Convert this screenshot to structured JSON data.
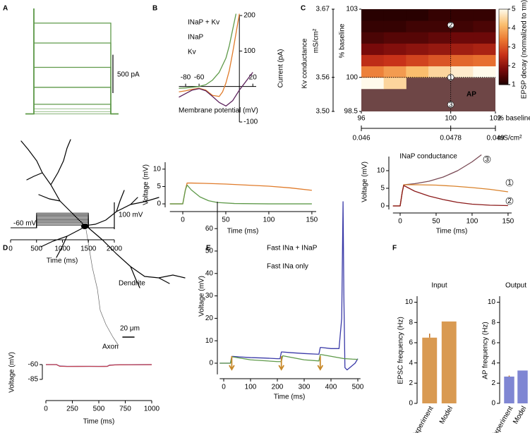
{
  "panel_labels": [
    "A",
    "B",
    "C",
    "D",
    "E",
    "F"
  ],
  "morphology": {
    "dendrite": "Dendrite",
    "axon": "Axon",
    "scalebar": "20 μm"
  },
  "chart_data": [
    {
      "type": "traces",
      "values": [
        1183,
        923,
        606,
        346,
        125,
        67,
        29
      ],
      "color": "#5f9a4a",
      "ylim": [
        -60,
        1300
      ],
      "scalebar": {
        "value": 500,
        "label": "500 pA"
      }
    },
    {
      "type": "protocol",
      "xlabel": "Time (ms)",
      "xlim": [
        0,
        2000
      ],
      "xticks": [
        0,
        500,
        1000,
        1500,
        2000
      ],
      "ylim": [
        -65,
        40
      ],
      "holding": {
        "value": -60,
        "label": "-60 mV"
      },
      "step_times": [
        500,
        1500
      ],
      "levels": [
        -50,
        -45,
        -40,
        -35,
        -30,
        -25,
        -20,
        -15,
        -10,
        -5
      ],
      "color": "#000000",
      "scalebar": {
        "value": 100,
        "label": "100 mV"
      }
    },
    {
      "type": "line",
      "xlabel": "Membrane potential (mV)",
      "ylabel": "Current (pA)",
      "xlim": [
        -90,
        25
      ],
      "xticks": [
        -80,
        -60,
        20
      ],
      "ylim": [
        -100,
        200
      ],
      "yticks": [
        -100,
        100,
        200
      ],
      "series": [
        {
          "name": "INaP + Kv",
          "color": "#e07b2a",
          "x": [
            -90,
            -80,
            -70,
            -60,
            -50,
            -40,
            -30,
            -25,
            -20,
            -15,
            -10,
            -5,
            0
          ],
          "values": [
            -15,
            -12,
            -8,
            -5,
            -10,
            -25,
            -28,
            -15,
            10,
            45,
            95,
            150,
            205
          ]
        },
        {
          "name": "INaP",
          "color": "#5a1f5a",
          "x": [
            -90,
            -80,
            -70,
            -60,
            -50,
            -40,
            -30,
            -20,
            -10,
            0,
            10,
            20
          ],
          "values": [
            -30,
            -20,
            -10,
            -6,
            -12,
            -28,
            -45,
            -55,
            -40,
            -10,
            15,
            40
          ]
        },
        {
          "name": "Kv",
          "color": "#5f9a4a",
          "x": [
            -90,
            -80,
            -70,
            -60,
            -50,
            -40,
            -30,
            -20,
            -15,
            -10,
            -5
          ],
          "values": [
            -5,
            -4,
            -2,
            0,
            5,
            18,
            40,
            80,
            115,
            160,
            205
          ]
        }
      ]
    },
    {
      "type": "line",
      "xlabel": "Time (ms)",
      "ylabel": "Voltage (mV)",
      "xlim": [
        -15,
        155
      ],
      "xticks": [
        0,
        50,
        100,
        150
      ],
      "ylim": [
        -1,
        12
      ],
      "yticks": [
        0,
        5,
        10
      ],
      "series": [
        {
          "color": "#e07b2a",
          "x": [
            -15,
            0,
            3,
            5,
            10,
            25,
            50,
            75,
            100,
            125,
            150
          ],
          "values": [
            0,
            0,
            4,
            6,
            6,
            5.9,
            5.7,
            5.4,
            5.1,
            4.6,
            3.9
          ]
        },
        {
          "color": "#5f9a4a",
          "x": [
            -15,
            0,
            3,
            5,
            10,
            20,
            30,
            40,
            60,
            100,
            150
          ],
          "values": [
            0,
            0,
            4,
            5.4,
            4,
            2,
            0.9,
            0.4,
            0.1,
            0,
            0
          ]
        }
      ]
    },
    {
      "type": "heatmap",
      "xlabel": "INaP conductance",
      "ylabel": "Kv conductance",
      "xlim": [
        96,
        102
      ],
      "xticks": [
        96,
        100,
        102
      ],
      "xticks_unit": "% baseline",
      "xticks2": [
        {
          "value": 96,
          "label": "0.046"
        },
        {
          "value": 100,
          "label": "0.0478"
        },
        {
          "value": 102,
          "label": "0.049"
        }
      ],
      "xticks2_unit": "mS/cm²",
      "ylim": [
        98.5,
        103
      ],
      "yticks": [
        98.5,
        100,
        103
      ],
      "yticks_unit": "% baseline",
      "yticks2": [
        {
          "value": 98.5,
          "label": "3.50"
        },
        {
          "value": 100,
          "label": "3.56"
        },
        {
          "value": 103,
          "label": "3.67"
        }
      ],
      "yticks2_unit": "mS/cm²",
      "xbins": [
        96,
        97,
        98,
        99,
        100,
        101,
        102
      ],
      "ybins": [
        98.5,
        99,
        99.5,
        100,
        100.5,
        101,
        101.5,
        102,
        102.5,
        103
      ],
      "z": [
        [
          null,
          null,
          null,
          null,
          null,
          null
        ],
        [
          null,
          null,
          null,
          null,
          null,
          null
        ],
        [
          5,
          4.5,
          null,
          null,
          null,
          null
        ],
        [
          3.5,
          3.8,
          4.2,
          4.5,
          4.8,
          5
        ],
        [
          2.5,
          2.6,
          2.8,
          3,
          3.2,
          3.3
        ],
        [
          1.8,
          1.9,
          2,
          2.1,
          2.2,
          2.3
        ],
        [
          1.4,
          1.5,
          1.5,
          1.6,
          1.7,
          1.7
        ],
        [
          1.2,
          1.2,
          1.3,
          1.3,
          1.3,
          1.4
        ],
        [
          1.1,
          1.1,
          1.1,
          1.2,
          1.2,
          1.2
        ]
      ],
      "ap_label": "AP",
      "ap_color": "#6e4646",
      "markers": [
        {
          "x": 100,
          "y": 100,
          "label": "1"
        },
        {
          "x": 100,
          "y": 102.3,
          "label": "2"
        },
        {
          "x": 100,
          "y": 98.8,
          "label": "3"
        }
      ],
      "colorbar_label": "EPSP decay (normalized to τm)",
      "clim": [
        1,
        5
      ],
      "cticks": [
        1,
        2,
        3,
        4,
        5
      ]
    },
    {
      "type": "line",
      "xlabel": "Time (ms)",
      "ylabel": "Voltage (mV)",
      "xlim": [
        -10,
        155
      ],
      "xticks": [
        0,
        50,
        100,
        150
      ],
      "ylim": [
        -1,
        14
      ],
      "yticks": [
        0,
        5,
        10
      ],
      "series": [
        {
          "name": "3",
          "color": "#7a4a55",
          "x": [
            -10,
            0,
            3,
            5,
            20,
            40,
            60,
            80,
            100,
            113
          ],
          "values": [
            0,
            0,
            4,
            6,
            6.3,
            7,
            8.2,
            10,
            12.5,
            14.5
          ]
        },
        {
          "name": "1",
          "color": "#d9822b",
          "x": [
            -10,
            0,
            3,
            5,
            25,
            50,
            75,
            100,
            125,
            150
          ],
          "values": [
            0,
            0,
            4,
            6,
            6,
            5.9,
            5.6,
            5.2,
            4.7,
            4
          ]
        },
        {
          "name": "2",
          "color": "#8b1a1a",
          "x": [
            -10,
            0,
            3,
            5,
            20,
            40,
            60,
            80,
            100,
            125,
            150
          ],
          "values": [
            0,
            0,
            4,
            5.8,
            4.2,
            2.8,
            1.8,
            1,
            0.5,
            0.2,
            0.1
          ]
        }
      ]
    },
    {
      "type": "line",
      "xlabel": "Time (ms)",
      "ylabel": "Voltage (mV)",
      "xlim": [
        0,
        1000
      ],
      "xticks": [
        0,
        250,
        500,
        750,
        1000
      ],
      "ylim": [
        -86,
        -58
      ],
      "yticks": [
        -60,
        -85
      ],
      "series": [
        {
          "color": "#4b4bb0",
          "x": [
            0,
            100,
            130,
            200,
            300,
            400,
            500,
            550,
            580,
            600,
            650,
            700,
            800,
            900,
            1000
          ],
          "values": [
            -60,
            -60,
            -62.5,
            -63,
            -63,
            -63,
            -63,
            -63,
            -63,
            -61,
            -60.5,
            -60.3,
            -60.2,
            -60.1,
            -60
          ]
        },
        {
          "color": "#c04050",
          "x": [
            0,
            100,
            130,
            200,
            300,
            400,
            500,
            550,
            580,
            600,
            650,
            700,
            800,
            900,
            1000
          ],
          "values": [
            -60,
            -60,
            -62.8,
            -63.2,
            -63.1,
            -63,
            -63.2,
            -63.1,
            -63,
            -61.3,
            -60.6,
            -60.4,
            -60.3,
            -60.2,
            -60.1
          ]
        }
      ]
    },
    {
      "type": "line",
      "xlabel": "Time (ms)",
      "ylabel": "Voltage (mV)",
      "xlim": [
        -15,
        510
      ],
      "xticks": [
        0,
        100,
        200,
        300,
        400,
        500
      ],
      "ylim": [
        -5,
        72
      ],
      "yticks": [
        0,
        10,
        20,
        30,
        40,
        50,
        60
      ],
      "arrows": [
        30,
        215,
        360
      ],
      "arrow_color": "#c8892a",
      "series": [
        {
          "name": "Fast INa + INaP",
          "color": "#3a3aa8",
          "x": [
            -15,
            25,
            30,
            35,
            60,
            100,
            150,
            200,
            210,
            215,
            220,
            250,
            300,
            350,
            355,
            360,
            365,
            400,
            430,
            440,
            445,
            448,
            452,
            460,
            470,
            490,
            500
          ],
          "values": [
            0,
            0,
            3,
            3,
            2.8,
            2.5,
            2.3,
            2,
            2,
            5,
            5,
            4.7,
            4.3,
            4,
            4,
            7,
            7,
            6.5,
            6.5,
            20,
            72,
            30,
            -2,
            -3,
            -2,
            0,
            2
          ]
        },
        {
          "name": "Fast INa only",
          "color": "#5f9a4a",
          "x": [
            -15,
            25,
            30,
            35,
            100,
            200,
            215,
            220,
            300,
            355,
            360,
            365,
            450,
            455,
            480,
            500
          ],
          "values": [
            0,
            0,
            2.8,
            2.8,
            1.5,
            0.7,
            0.7,
            3.3,
            1.5,
            1,
            3.8,
            3.8,
            2,
            2,
            1.8,
            1.7
          ]
        }
      ]
    },
    {
      "type": "bar",
      "title": "Input",
      "ylabel": "EPSC frequency (Hz)",
      "categories": [
        "Experiment",
        "Model"
      ],
      "values": [
        6.5,
        8.1
      ],
      "errors": [
        0.4,
        null
      ],
      "color": "#d99a52",
      "ylim": [
        0,
        10.6
      ],
      "yticks": [
        0,
        2,
        4,
        6,
        8,
        10
      ]
    },
    {
      "type": "bar",
      "title": "Output",
      "ylabel": "AP frequency (Hz)",
      "categories": [
        "Experiment",
        "Model"
      ],
      "values": [
        2.65,
        3.25
      ],
      "errors": [
        0.1,
        null
      ],
      "color": "#7f86d3",
      "ylim": [
        0,
        10.6
      ],
      "yticks": [
        0,
        2,
        4,
        6,
        8,
        10
      ]
    }
  ]
}
